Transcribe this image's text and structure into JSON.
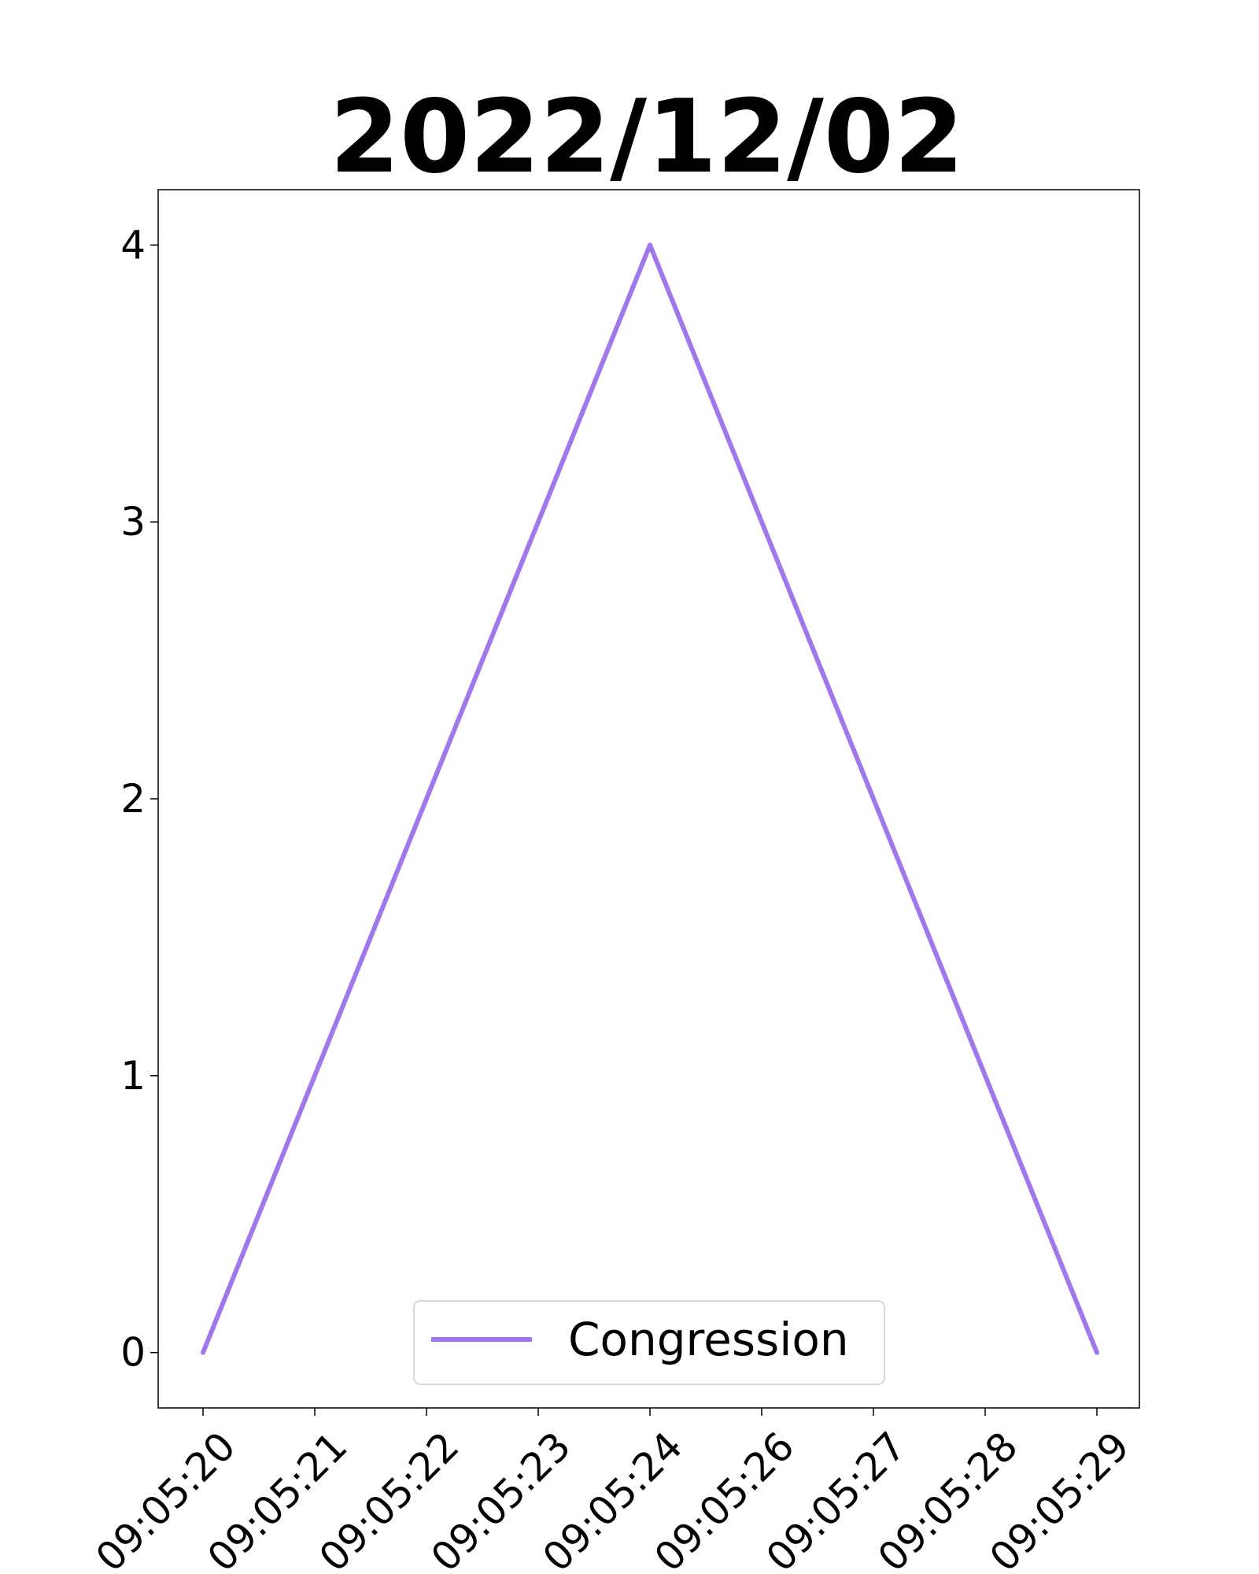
{
  "chart_data": {
    "type": "line",
    "title": "2022/12/02",
    "xlabel": "",
    "ylabel": "",
    "x": [
      "09:05:20",
      "09:05:24",
      "09:05:29"
    ],
    "x_ticks": [
      "09:05:20",
      "09:05:21",
      "09:05:22",
      "09:05:23",
      "09:05:24",
      "09:05:26",
      "09:05:27",
      "09:05:28",
      "09:05:29"
    ],
    "y_ticks": [
      "0",
      "1",
      "2",
      "3",
      "4"
    ],
    "ylim": [
      -0.2,
      4.2
    ],
    "grid": false,
    "legend_position": "bottom-center",
    "series": [
      {
        "name": "Congression",
        "color": "#a078eb",
        "values": [
          0,
          4,
          0
        ]
      }
    ]
  }
}
